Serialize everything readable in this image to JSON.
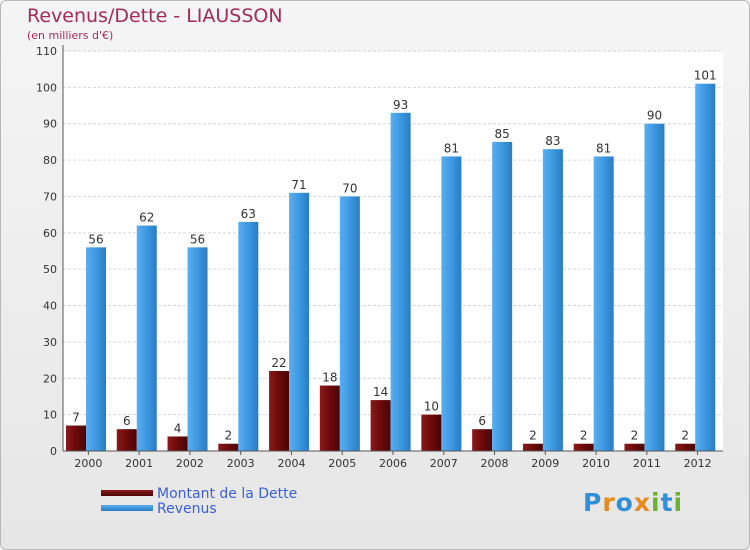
{
  "header": {
    "title": "Revenus/Dette - LIAUSSON",
    "subtitle": "(en milliers d'€)"
  },
  "legend": {
    "items": [
      {
        "label": "Montant de la Dette",
        "color": "#6b0a0a"
      },
      {
        "label": "Revenus",
        "color": "#3a96df"
      }
    ]
  },
  "logo": {
    "text": "Proxiti",
    "letters": [
      {
        "ch": "P",
        "color": "#2f8fd8"
      },
      {
        "ch": "r",
        "color": "#e8891c"
      },
      {
        "ch": "o",
        "color": "#2f8fd8"
      },
      {
        "ch": "x",
        "color": "#e8891c"
      },
      {
        "ch": "i",
        "color": "#6bb32e"
      },
      {
        "ch": "t",
        "color": "#2f8fd8"
      },
      {
        "ch": "i",
        "color": "#6bb32e"
      }
    ]
  },
  "chart_data": {
    "type": "bar",
    "title": "Revenus/Dette - LIAUSSON",
    "subtitle": "(en milliers d'€)",
    "xlabel": "",
    "ylabel": "",
    "ylim": [
      0,
      110
    ],
    "yticks": [
      0,
      10,
      20,
      30,
      40,
      50,
      60,
      70,
      80,
      90,
      100,
      110
    ],
    "grid": true,
    "legend_position": "bottom-left",
    "categories": [
      "2000",
      "2001",
      "2002",
      "2003",
      "2004",
      "2005",
      "2006",
      "2007",
      "2008",
      "2009",
      "2010",
      "2011",
      "2012"
    ],
    "series": [
      {
        "name": "Montant de la Dette",
        "color": "#6b0a0a",
        "values": [
          7,
          6,
          4,
          2,
          22,
          18,
          14,
          10,
          6,
          2,
          2,
          2,
          2
        ]
      },
      {
        "name": "Revenus",
        "color": "#3a96df",
        "values": [
          56,
          62,
          56,
          63,
          71,
          70,
          93,
          81,
          85,
          83,
          81,
          90,
          101
        ]
      }
    ]
  }
}
